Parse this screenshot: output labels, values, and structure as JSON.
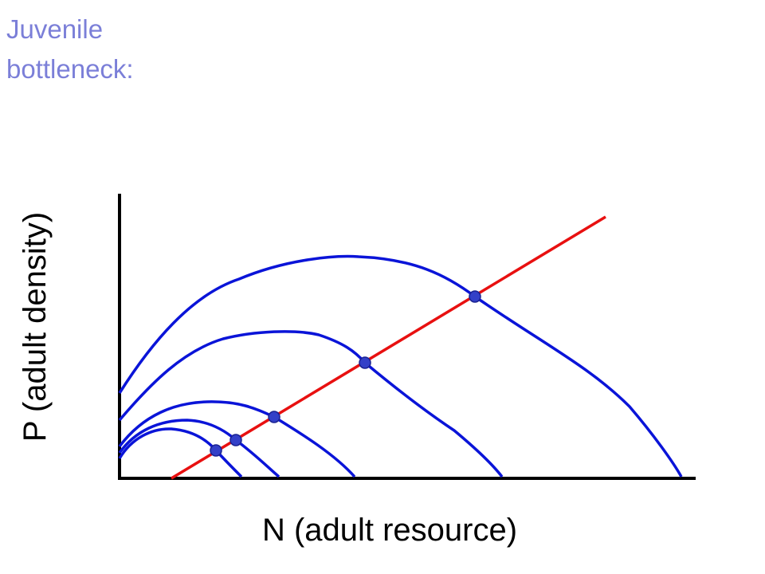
{
  "header": {
    "title_lines": [
      "Juvenile",
      "bottleneck:"
    ]
  },
  "axes": {
    "y_label": "P (adult density)",
    "x_label": "N (adult resource)"
  }
}
